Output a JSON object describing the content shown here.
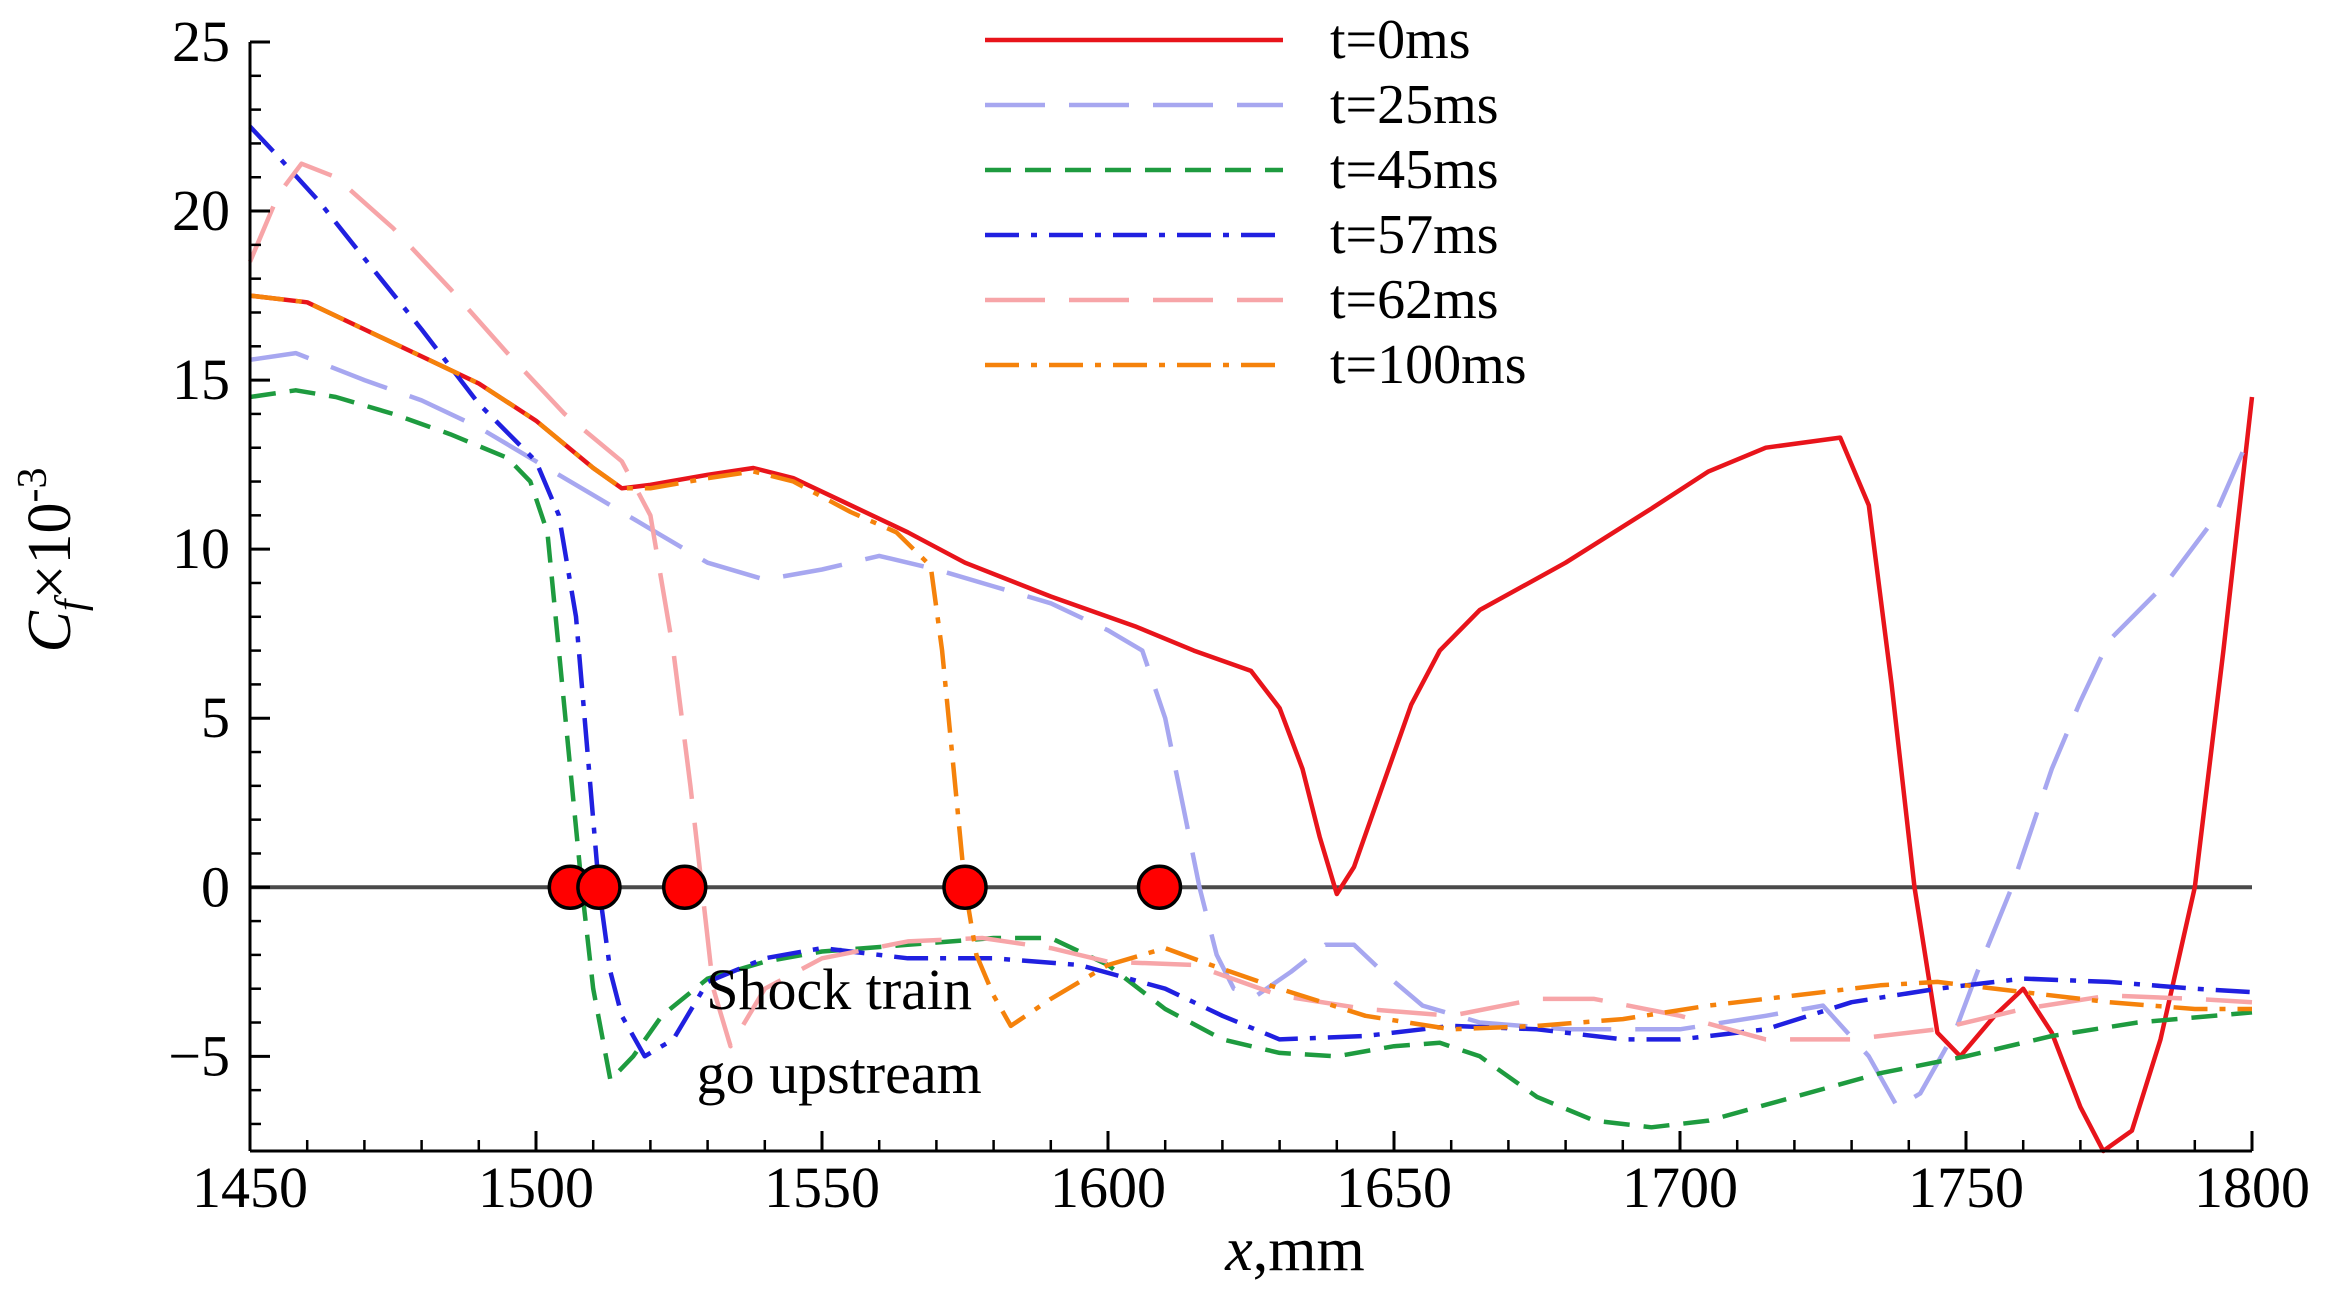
{
  "chart_data": {
    "type": "line",
    "title": "",
    "xlabel": {
      "italic": "x",
      "rest": ",mm"
    },
    "ylabel": {
      "C": "C",
      "f": "f",
      "mid": "×10",
      "exp": "-3"
    },
    "xlim": [
      1450,
      1800
    ],
    "ylim": [
      -7.8,
      25
    ],
    "x_ticks": [
      1450,
      1500,
      1550,
      1600,
      1650,
      1700,
      1750,
      1800
    ],
    "x_tick_labels": [
      "1450",
      "1500",
      "1550",
      "1600",
      "1650",
      "1700",
      "1750",
      "1800"
    ],
    "y_ticks": [
      -5,
      0,
      5,
      10,
      15,
      20,
      25
    ],
    "y_tick_labels": [
      "−5",
      "0",
      "5",
      "10",
      "15",
      "20",
      "25"
    ],
    "zero_line": true,
    "legend_position": "top-center",
    "series": [
      {
        "name": "t=0ms",
        "color": "#e8141b",
        "dash": "solid",
        "points": [
          [
            1450,
            17.5
          ],
          [
            1460,
            17.3
          ],
          [
            1470,
            16.5
          ],
          [
            1480,
            15.7
          ],
          [
            1490,
            14.9
          ],
          [
            1500,
            13.8
          ],
          [
            1510,
            12.4
          ],
          [
            1515,
            11.8
          ],
          [
            1520,
            11.9
          ],
          [
            1530,
            12.2
          ],
          [
            1538,
            12.4
          ],
          [
            1545,
            12.1
          ],
          [
            1555,
            11.3
          ],
          [
            1565,
            10.5
          ],
          [
            1575,
            9.6
          ],
          [
            1590,
            8.6
          ],
          [
            1605,
            7.7
          ],
          [
            1615,
            7.0
          ],
          [
            1625,
            6.4
          ],
          [
            1630,
            5.3
          ],
          [
            1634,
            3.5
          ],
          [
            1637,
            1.5
          ],
          [
            1640,
            -0.2
          ],
          [
            1643,
            0.6
          ],
          [
            1648,
            3.0
          ],
          [
            1653,
            5.4
          ],
          [
            1658,
            7.0
          ],
          [
            1665,
            8.2
          ],
          [
            1680,
            9.6
          ],
          [
            1695,
            11.2
          ],
          [
            1705,
            12.3
          ],
          [
            1715,
            13.0
          ],
          [
            1728,
            13.3
          ],
          [
            1733,
            11.3
          ],
          [
            1737,
            6.0
          ],
          [
            1741,
            0.0
          ],
          [
            1745,
            -4.3
          ],
          [
            1749,
            -5.0
          ],
          [
            1755,
            -3.8
          ],
          [
            1760,
            -3.0
          ],
          [
            1765,
            -4.3
          ],
          [
            1770,
            -6.5
          ],
          [
            1774,
            -7.8
          ],
          [
            1779,
            -7.2
          ],
          [
            1784,
            -4.5
          ],
          [
            1790,
            0.0
          ],
          [
            1795,
            7.0
          ],
          [
            1800,
            14.5
          ]
        ]
      },
      {
        "name": "t=25ms",
        "color": "#a7a7f0",
        "dash": "long-dash",
        "points": [
          [
            1450,
            15.6
          ],
          [
            1458,
            15.8
          ],
          [
            1470,
            15.0
          ],
          [
            1480,
            14.4
          ],
          [
            1490,
            13.6
          ],
          [
            1500,
            12.6
          ],
          [
            1510,
            11.6
          ],
          [
            1520,
            10.6
          ],
          [
            1530,
            9.6
          ],
          [
            1540,
            9.1
          ],
          [
            1550,
            9.4
          ],
          [
            1560,
            9.8
          ],
          [
            1570,
            9.4
          ],
          [
            1580,
            8.9
          ],
          [
            1590,
            8.4
          ],
          [
            1600,
            7.6
          ],
          [
            1606,
            7.0
          ],
          [
            1610,
            5.0
          ],
          [
            1613,
            2.5
          ],
          [
            1616,
            0.0
          ],
          [
            1619,
            -2.0
          ],
          [
            1622,
            -3.0
          ],
          [
            1626,
            -3.2
          ],
          [
            1632,
            -2.5
          ],
          [
            1638,
            -1.7
          ],
          [
            1643,
            -1.7
          ],
          [
            1648,
            -2.5
          ],
          [
            1655,
            -3.5
          ],
          [
            1665,
            -4.0
          ],
          [
            1680,
            -4.2
          ],
          [
            1700,
            -4.2
          ],
          [
            1715,
            -3.8
          ],
          [
            1725,
            -3.5
          ],
          [
            1733,
            -5.0
          ],
          [
            1738,
            -6.5
          ],
          [
            1742,
            -6.1
          ],
          [
            1748,
            -4.3
          ],
          [
            1752,
            -2.5
          ],
          [
            1758,
            0.0
          ],
          [
            1765,
            3.5
          ],
          [
            1770,
            5.5
          ],
          [
            1775,
            7.3
          ],
          [
            1785,
            9.0
          ],
          [
            1793,
            10.8
          ],
          [
            1800,
            13.5
          ]
        ]
      },
      {
        "name": "t=45ms",
        "color": "#1e9b3f",
        "dash": "dash",
        "points": [
          [
            1450,
            14.5
          ],
          [
            1458,
            14.7
          ],
          [
            1465,
            14.5
          ],
          [
            1475,
            14.0
          ],
          [
            1485,
            13.4
          ],
          [
            1495,
            12.7
          ],
          [
            1499,
            12.0
          ],
          [
            1502,
            10.5
          ],
          [
            1504,
            7.0
          ],
          [
            1506,
            3.5
          ],
          [
            1508,
            0.0
          ],
          [
            1510,
            -3.0
          ],
          [
            1513,
            -5.7
          ],
          [
            1517,
            -5.0
          ],
          [
            1522,
            -3.8
          ],
          [
            1530,
            -2.7
          ],
          [
            1540,
            -2.2
          ],
          [
            1550,
            -1.9
          ],
          [
            1565,
            -1.7
          ],
          [
            1580,
            -1.5
          ],
          [
            1590,
            -1.5
          ],
          [
            1600,
            -2.3
          ],
          [
            1610,
            -3.6
          ],
          [
            1620,
            -4.5
          ],
          [
            1630,
            -4.9
          ],
          [
            1640,
            -5.0
          ],
          [
            1650,
            -4.7
          ],
          [
            1658,
            -4.6
          ],
          [
            1665,
            -5.0
          ],
          [
            1675,
            -6.2
          ],
          [
            1685,
            -6.9
          ],
          [
            1695,
            -7.1
          ],
          [
            1705,
            -6.9
          ],
          [
            1720,
            -6.2
          ],
          [
            1735,
            -5.5
          ],
          [
            1750,
            -5.0
          ],
          [
            1765,
            -4.4
          ],
          [
            1780,
            -4.0
          ],
          [
            1800,
            -3.7
          ]
        ]
      },
      {
        "name": "t=57ms",
        "color": "#2020e0",
        "dash": "dash-dot",
        "points": [
          [
            1450,
            22.5
          ],
          [
            1455,
            21.6
          ],
          [
            1462,
            20.3
          ],
          [
            1470,
            18.6
          ],
          [
            1480,
            16.5
          ],
          [
            1490,
            14.3
          ],
          [
            1500,
            12.6
          ],
          [
            1504,
            11.0
          ],
          [
            1507,
            8.0
          ],
          [
            1509,
            4.0
          ],
          [
            1511,
            0.0
          ],
          [
            1513,
            -2.5
          ],
          [
            1515,
            -3.8
          ],
          [
            1519,
            -5.0
          ],
          [
            1524,
            -4.5
          ],
          [
            1530,
            -2.8
          ],
          [
            1540,
            -2.1
          ],
          [
            1550,
            -1.8
          ],
          [
            1565,
            -2.1
          ],
          [
            1580,
            -2.1
          ],
          [
            1595,
            -2.3
          ],
          [
            1610,
            -3.0
          ],
          [
            1620,
            -3.8
          ],
          [
            1630,
            -4.5
          ],
          [
            1645,
            -4.4
          ],
          [
            1660,
            -4.1
          ],
          [
            1675,
            -4.2
          ],
          [
            1690,
            -4.5
          ],
          [
            1700,
            -4.5
          ],
          [
            1715,
            -4.2
          ],
          [
            1730,
            -3.4
          ],
          [
            1745,
            -3.0
          ],
          [
            1760,
            -2.7
          ],
          [
            1775,
            -2.8
          ],
          [
            1790,
            -3.0
          ],
          [
            1800,
            -3.1
          ]
        ]
      },
      {
        "name": "t=62ms",
        "color": "#f7a5a8",
        "dash": "long-dash",
        "points": [
          [
            1450,
            18.5
          ],
          [
            1455,
            20.5
          ],
          [
            1459,
            21.4
          ],
          [
            1465,
            21.0
          ],
          [
            1475,
            19.5
          ],
          [
            1485,
            17.7
          ],
          [
            1495,
            15.8
          ],
          [
            1505,
            14.0
          ],
          [
            1515,
            12.6
          ],
          [
            1520,
            11.0
          ],
          [
            1524,
            7.0
          ],
          [
            1527,
            3.0
          ],
          [
            1529,
            0.0
          ],
          [
            1531,
            -3.0
          ],
          [
            1534,
            -4.7
          ],
          [
            1540,
            -3.0
          ],
          [
            1550,
            -2.1
          ],
          [
            1565,
            -1.6
          ],
          [
            1578,
            -1.5
          ],
          [
            1590,
            -1.8
          ],
          [
            1600,
            -2.2
          ],
          [
            1615,
            -2.3
          ],
          [
            1630,
            -3.2
          ],
          [
            1645,
            -3.6
          ],
          [
            1660,
            -3.8
          ],
          [
            1675,
            -3.3
          ],
          [
            1685,
            -3.3
          ],
          [
            1700,
            -3.8
          ],
          [
            1715,
            -4.5
          ],
          [
            1730,
            -4.5
          ],
          [
            1745,
            -4.2
          ],
          [
            1760,
            -3.6
          ],
          [
            1775,
            -3.2
          ],
          [
            1790,
            -3.3
          ],
          [
            1800,
            -3.4
          ]
        ]
      },
      {
        "name": "t=100ms",
        "color": "#f5820b",
        "dash": "dash-dot",
        "points": [
          [
            1450,
            17.5
          ],
          [
            1460,
            17.3
          ],
          [
            1470,
            16.5
          ],
          [
            1480,
            15.7
          ],
          [
            1490,
            14.9
          ],
          [
            1500,
            13.8
          ],
          [
            1510,
            12.4
          ],
          [
            1515,
            11.8
          ],
          [
            1520,
            11.8
          ],
          [
            1530,
            12.1
          ],
          [
            1538,
            12.3
          ],
          [
            1545,
            12.0
          ],
          [
            1555,
            11.1
          ],
          [
            1563,
            10.5
          ],
          [
            1569,
            9.5
          ],
          [
            1571,
            7.0
          ],
          [
            1573,
            3.5
          ],
          [
            1575,
            0.0
          ],
          [
            1577,
            -2.0
          ],
          [
            1580,
            -3.2
          ],
          [
            1583,
            -4.1
          ],
          [
            1590,
            -3.3
          ],
          [
            1600,
            -2.3
          ],
          [
            1610,
            -1.8
          ],
          [
            1618,
            -2.3
          ],
          [
            1630,
            -3.0
          ],
          [
            1645,
            -3.8
          ],
          [
            1660,
            -4.2
          ],
          [
            1675,
            -4.1
          ],
          [
            1690,
            -3.9
          ],
          [
            1705,
            -3.5
          ],
          [
            1720,
            -3.2
          ],
          [
            1735,
            -2.9
          ],
          [
            1745,
            -2.8
          ],
          [
            1760,
            -3.1
          ],
          [
            1775,
            -3.4
          ],
          [
            1790,
            -3.6
          ],
          [
            1800,
            -3.6
          ]
        ]
      }
    ],
    "markers": {
      "color": "#ff0000",
      "points": [
        [
          1506,
          0
        ],
        [
          1511,
          0
        ],
        [
          1526,
          0
        ],
        [
          1575,
          0
        ],
        [
          1609,
          0
        ]
      ]
    },
    "annotation": {
      "lines": [
        "Shock train",
        "go upstream"
      ],
      "anchor": [
        1553,
        -3.6
      ]
    }
  }
}
